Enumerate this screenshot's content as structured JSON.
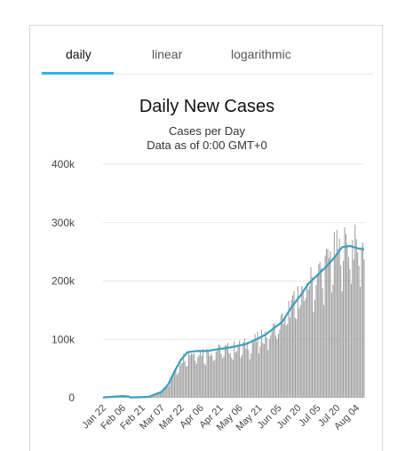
{
  "tabs": [
    {
      "label": "daily",
      "active": true
    },
    {
      "label": "linear",
      "active": false
    },
    {
      "label": "logarithmic",
      "active": false
    }
  ],
  "colors": {
    "accent": "#2bb3e6",
    "bars": "#9e9e9e",
    "avg_line": "#3a9fc1",
    "grid": "#e5e5e5"
  },
  "chart_data": {
    "type": "bar",
    "title": "Daily New Cases",
    "subtitle": "Cases per Day",
    "note": "Data as of 0:00 GMT+0",
    "y_ticks": [
      "0",
      "100k",
      "200k",
      "300k",
      "400k"
    ],
    "ylim": [
      0,
      400000
    ],
    "x_tick_labels": [
      "Jan 22",
      "Feb 06",
      "Feb 21",
      "Mar 07",
      "Mar 22",
      "Apr 06",
      "Apr 21",
      "May 06",
      "May 21",
      "Jun 05",
      "Jun 20",
      "Jul 05",
      "Jul 20",
      "Aug 04"
    ],
    "start_date": "Jan 22",
    "days": 202,
    "grid": true,
    "series": [
      {
        "type": "bar",
        "anchors": [
          [
            0,
            500
          ],
          [
            10,
            2000
          ],
          [
            16,
            3500
          ],
          [
            20,
            2000
          ],
          [
            21,
            500
          ],
          [
            35,
            1500
          ],
          [
            45,
            12000
          ],
          [
            50,
            25000
          ],
          [
            55,
            45000
          ],
          [
            60,
            65000
          ],
          [
            65,
            78000
          ],
          [
            72,
            80000
          ],
          [
            80,
            80000
          ],
          [
            88,
            83000
          ],
          [
            95,
            85000
          ],
          [
            102,
            88000
          ],
          [
            110,
            92000
          ],
          [
            118,
            100000
          ],
          [
            125,
            108000
          ],
          [
            132,
            120000
          ],
          [
            138,
            135000
          ],
          [
            145,
            160000
          ],
          [
            152,
            180000
          ],
          [
            158,
            200000
          ],
          [
            165,
            215000
          ],
          [
            172,
            235000
          ],
          [
            178,
            255000
          ],
          [
            184,
            265000
          ],
          [
            190,
            270000
          ],
          [
            196,
            265000
          ],
          [
            201,
            262000
          ]
        ]
      },
      {
        "type": "line",
        "anchors": [
          [
            0,
            500
          ],
          [
            10,
            2000
          ],
          [
            15,
            3000
          ],
          [
            20,
            2000
          ],
          [
            21,
            500
          ],
          [
            35,
            1500
          ],
          [
            45,
            10000
          ],
          [
            50,
            22000
          ],
          [
            55,
            45000
          ],
          [
            60,
            65000
          ],
          [
            65,
            78000
          ],
          [
            72,
            80000
          ],
          [
            80,
            80000
          ],
          [
            88,
            83000
          ],
          [
            95,
            85000
          ],
          [
            102,
            88000
          ],
          [
            110,
            92000
          ],
          [
            118,
            100000
          ],
          [
            125,
            108000
          ],
          [
            132,
            120000
          ],
          [
            138,
            130000
          ],
          [
            145,
            155000
          ],
          [
            152,
            175000
          ],
          [
            158,
            195000
          ],
          [
            165,
            210000
          ],
          [
            172,
            225000
          ],
          [
            178,
            240000
          ],
          [
            184,
            258000
          ],
          [
            190,
            260000
          ],
          [
            196,
            256000
          ],
          [
            201,
            254000
          ]
        ]
      }
    ]
  }
}
